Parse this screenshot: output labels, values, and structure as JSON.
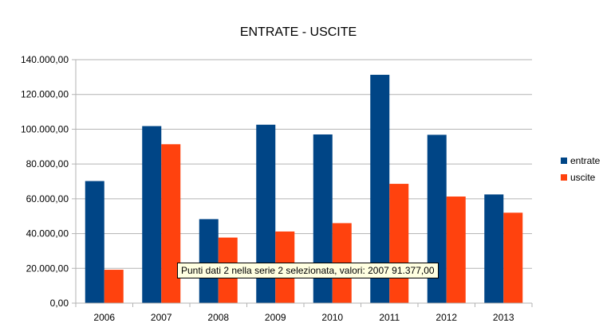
{
  "chart_data": {
    "type": "bar",
    "title": "ENTRATE - USCITE",
    "categories": [
      "2006",
      "2007",
      "2008",
      "2009",
      "2010",
      "2011",
      "2012",
      "2013"
    ],
    "series": [
      {
        "name": "entrate",
        "color": "#004586",
        "values": [
          70200,
          101800,
          48300,
          102600,
          97000,
          131300,
          96800,
          62500
        ]
      },
      {
        "name": "uscite",
        "color": "#ff420e",
        "values": [
          19200,
          91377,
          37700,
          41200,
          46000,
          68600,
          61300,
          52000
        ]
      }
    ],
    "ylim": [
      0,
      140000
    ],
    "yticks": [
      "0,00",
      "20.000,00",
      "40.000,00",
      "60.000,00",
      "80.000,00",
      "100.000,00",
      "120.000,00",
      "140.000,00"
    ],
    "grid": true,
    "legend_position": "right",
    "tooltip": "Punti dati 2 nella serie 2 selezionata, valori: 2007 91.377,00"
  }
}
